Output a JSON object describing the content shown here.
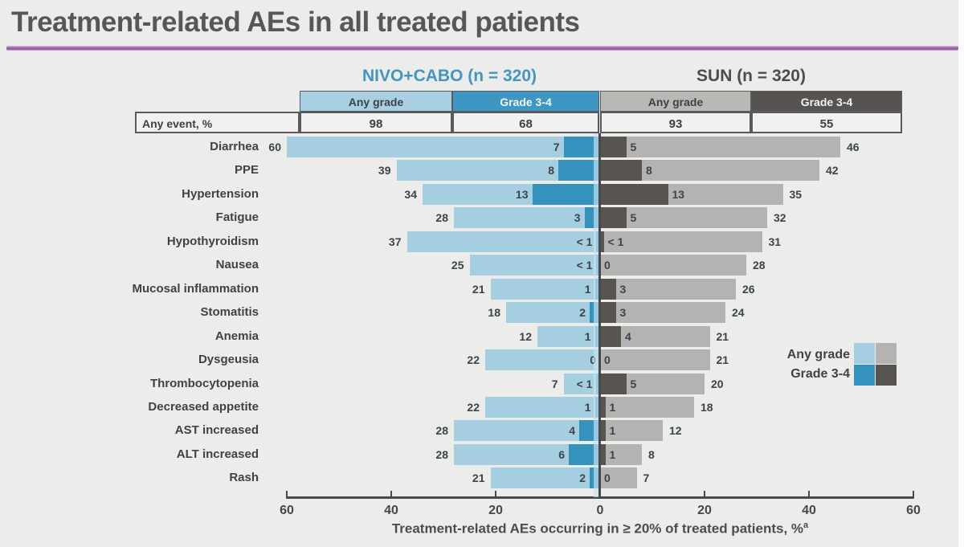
{
  "title": "Treatment-related AEs in all treated patients",
  "groups": {
    "nivo_cabo": {
      "label": "NIVO+CABO (n = 320)",
      "color": "#4495BF"
    },
    "sun": {
      "label": "SUN (n = 320)",
      "color": "#4B4D50"
    }
  },
  "table": {
    "any_event_label": "Any event, %",
    "columns": [
      "Any grade",
      "Grade 3-4",
      "Any grade",
      "Grade 3-4"
    ],
    "any_event_values": [
      "98",
      "68",
      "93",
      "55"
    ]
  },
  "legend": {
    "any_grade": "Any grade",
    "grade34": "Grade 3-4"
  },
  "axis": {
    "tick_values": [
      60,
      40,
      20,
      0,
      20,
      40,
      60
    ],
    "label": "Treatment-related AEs occurring in ≥ 20% of treated patients, %",
    "label_superscript": "a"
  },
  "colors": {
    "background": "#ECECEA",
    "nivo_any_grade": "#A5CEE0",
    "nivo_grade34": "#3592BD",
    "sun_any_grade": "#B4B3B1",
    "sun_grade34": "#585450",
    "accent_rule": "#9A67AC",
    "axis": "#48494B"
  },
  "chart_data": {
    "type": "bar",
    "subtype": "diverging-tornado",
    "title": "Treatment-related AEs in all treated patients",
    "xlabel": "Treatment-related AEs occurring in ≥ 20% of treated patients, %",
    "axis_range_each_side": [
      0,
      60
    ],
    "grid": false,
    "legend_position": "right-middle",
    "categories": [
      "Diarrhea",
      "PPE",
      "Hypertension",
      "Fatigue",
      "Hypothyroidism",
      "Nausea",
      "Mucosal inflammation",
      "Stomatitis",
      "Anemia",
      "Dysgeusia",
      "Thrombocytopenia",
      "Decreased appetite",
      "AST increased",
      "ALT increased",
      "Rash"
    ],
    "any_event_row": {
      "label": "Any event, %",
      "values": [
        "98",
        "68",
        "93",
        "55"
      ]
    },
    "series": [
      {
        "name": "NIVO+CABO Any grade",
        "side": "left",
        "values": [
          60,
          39,
          34,
          28,
          37,
          25,
          21,
          18,
          12,
          22,
          7,
          22,
          28,
          28,
          21
        ],
        "labels": [
          "60",
          "39",
          "34",
          "28",
          "37",
          "25",
          "21",
          "18",
          "12",
          "22",
          "7",
          "22",
          "28",
          "28",
          "21"
        ]
      },
      {
        "name": "NIVO+CABO Grade 3-4",
        "side": "left",
        "values": [
          7,
          8,
          13,
          3,
          0.7,
          0.7,
          1,
          2,
          1,
          0,
          0.7,
          1,
          4,
          6,
          2
        ],
        "labels": [
          "7",
          "8",
          "13",
          "3",
          "< 1",
          "< 1",
          "1",
          "2",
          "1",
          "0",
          "< 1",
          "1",
          "4",
          "6",
          "2"
        ]
      },
      {
        "name": "SUN Grade 3-4",
        "side": "right",
        "values": [
          5,
          8,
          13,
          5,
          0.7,
          0,
          3,
          3,
          4,
          0,
          5,
          1,
          1,
          1,
          0
        ],
        "labels": [
          "5",
          "8",
          "13",
          "5",
          "< 1",
          "0",
          "3",
          "3",
          "4",
          "0",
          "5",
          "1",
          "1",
          "1",
          "0"
        ]
      },
      {
        "name": "SUN Any grade",
        "side": "right",
        "values": [
          46,
          42,
          35,
          32,
          31,
          28,
          26,
          24,
          21,
          21,
          20,
          18,
          12,
          8,
          7
        ],
        "labels": [
          "46",
          "42",
          "35",
          "32",
          "31",
          "28",
          "26",
          "24",
          "21",
          "21",
          "20",
          "18",
          "12",
          "8",
          "7"
        ]
      }
    ]
  }
}
